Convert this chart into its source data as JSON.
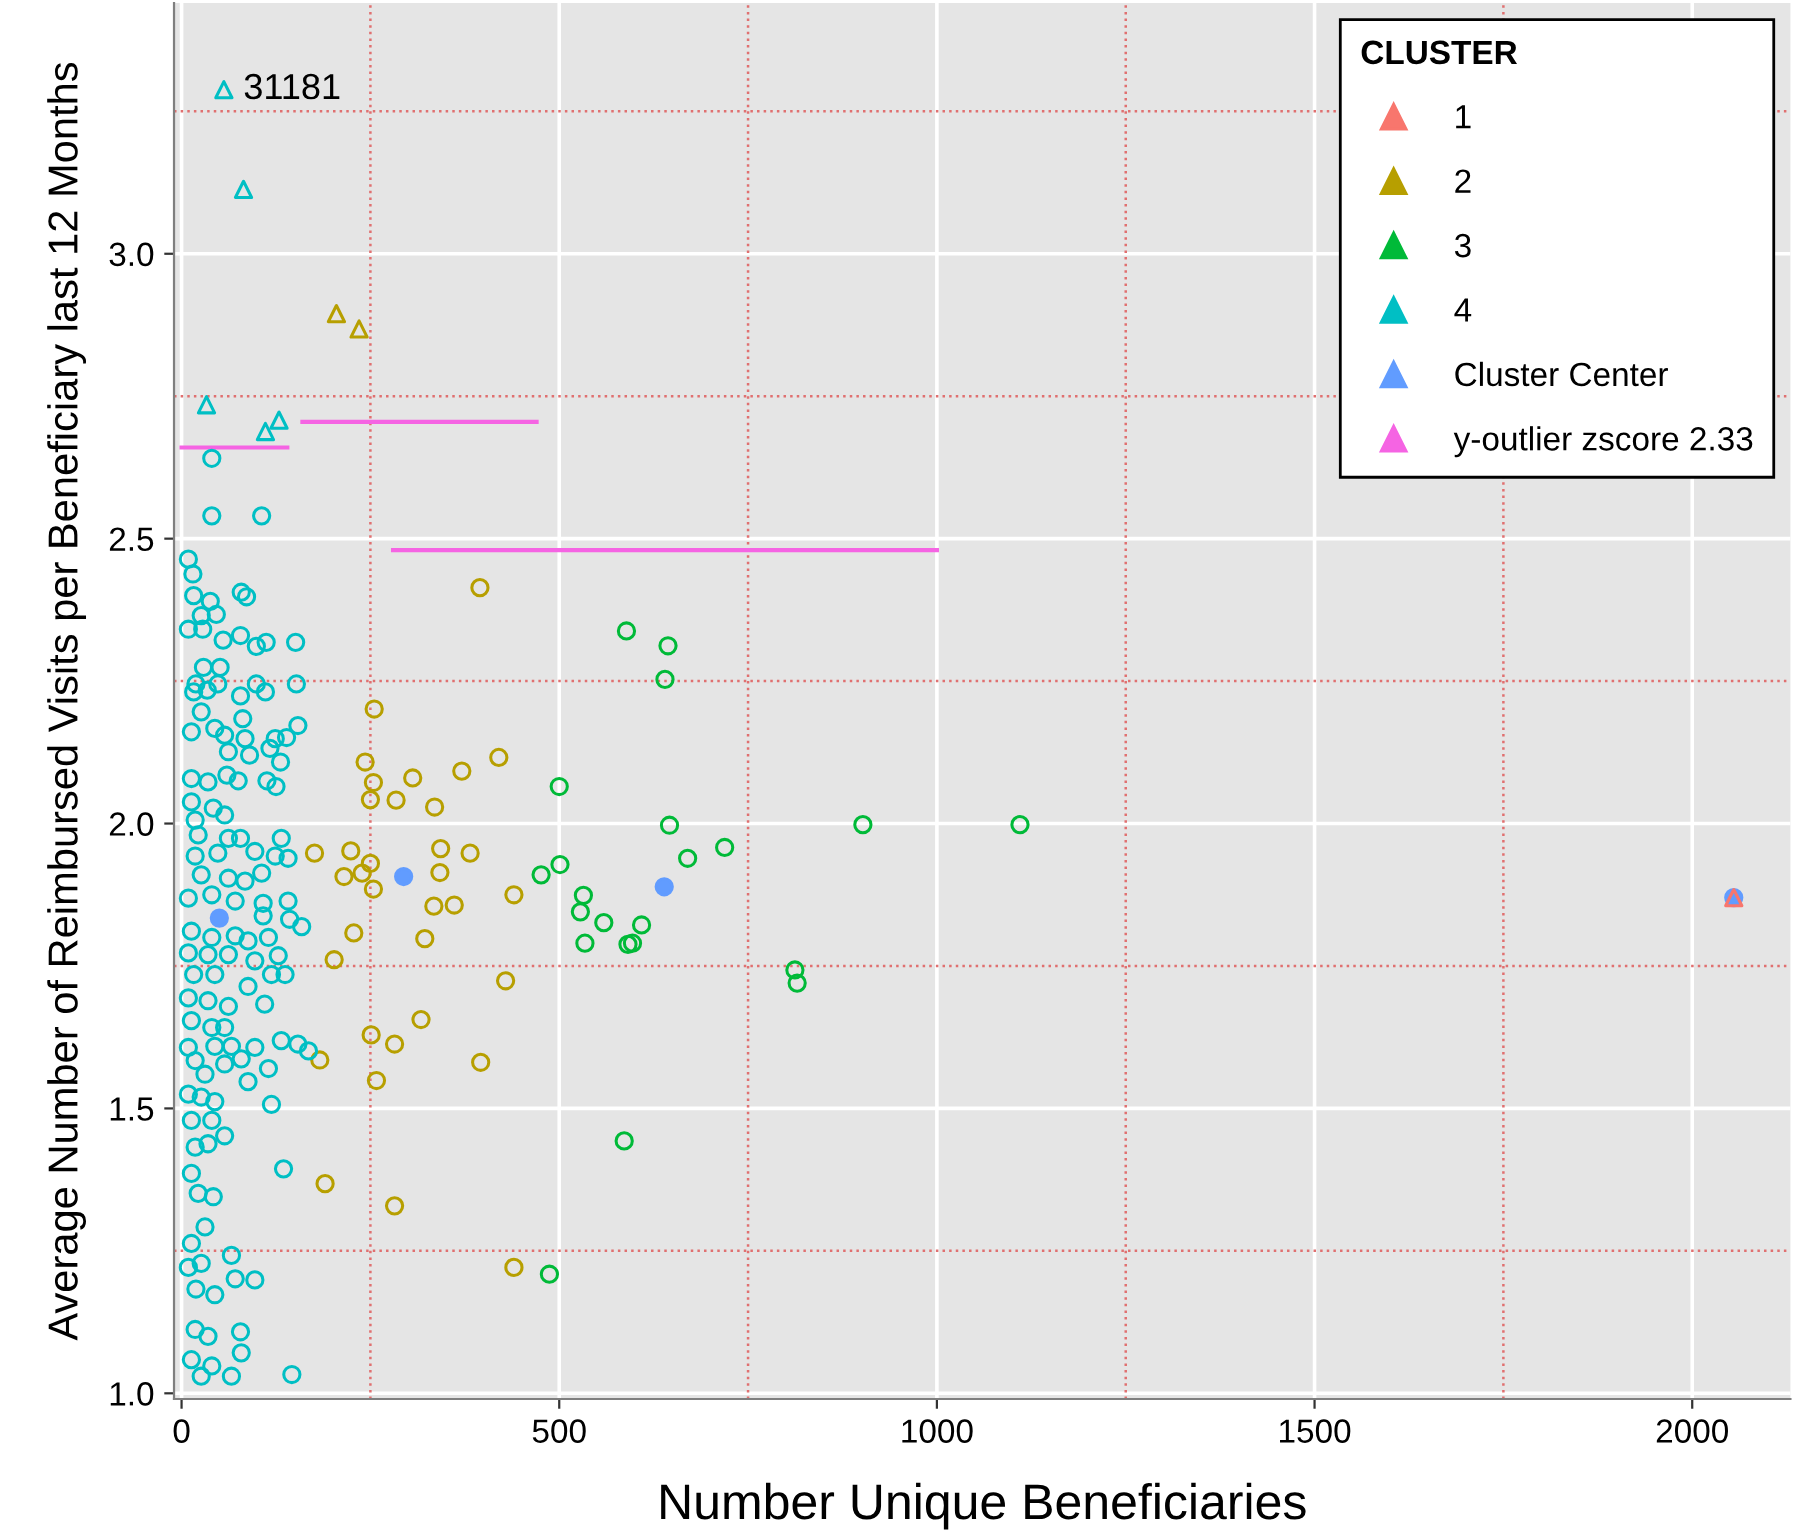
{
  "chart_data": {
    "type": "scatter",
    "xlabel": "Number Unique Beneficiaries",
    "ylabel": "Average Number of Reimbursed Visits per Beneficiary last 12 Months",
    "legend_title": "CLUSTER",
    "legend": "top right",
    "grid": true,
    "xlim": [
      -10,
      2130
    ],
    "ylim": [
      0.99,
      3.44
    ],
    "xticks": [
      0,
      500,
      1000,
      1500,
      2000
    ],
    "yticks": [
      {
        "value": 1.0,
        "label": "1.0"
      },
      {
        "value": 1.5,
        "label": "1.5"
      },
      {
        "value": 2.0,
        "label": "2.0"
      },
      {
        "value": 2.5,
        "label": "2.5"
      },
      {
        "value": 3.0,
        "label": "3.0"
      }
    ],
    "ref_lines": [
      {
        "axis": "x",
        "value": 250,
        "color": "#e07070",
        "line_style": "dotted"
      },
      {
        "axis": "x",
        "value": 750,
        "color": "#e07070",
        "line_style": "dotted"
      },
      {
        "axis": "x",
        "value": 1250,
        "color": "#e07070",
        "line_style": "dotted"
      },
      {
        "axis": "x",
        "value": 1750,
        "color": "#e07070",
        "line_style": "dotted"
      },
      {
        "axis": "y",
        "value": 1.25,
        "color": "#e07070",
        "line_style": "dotted"
      },
      {
        "axis": "y",
        "value": 1.75,
        "color": "#e07070",
        "line_style": "dotted"
      },
      {
        "axis": "y",
        "value": 2.25,
        "color": "#e07070",
        "line_style": "dotted"
      },
      {
        "axis": "y",
        "value": 2.75,
        "color": "#e07070",
        "line_style": "dotted"
      },
      {
        "axis": "y",
        "value": 3.25,
        "color": "#e07070",
        "line_style": "dotted"
      }
    ],
    "annotations": [
      {
        "text": "31181",
        "x": 56,
        "y": 3.288
      }
    ],
    "series": [
      {
        "name": "1",
        "color": "#f8766d",
        "marker": "triangle",
        "x": [
          2055
        ],
        "values": [
          1.87
        ]
      },
      {
        "name": "2",
        "color": "#b79f00",
        "marker": "circle",
        "x": [
          395,
          255,
          243,
          420,
          371,
          306,
          254,
          250,
          284,
          335,
          224,
          343,
          382,
          250,
          239,
          215,
          342,
          254,
          440,
          334,
          361,
          228,
          322,
          429,
          317,
          251,
          282,
          396,
          258,
          282,
          440,
          176,
          202,
          183,
          190
        ],
        "values": [
          2.414,
          2.201,
          2.108,
          2.116,
          2.092,
          2.08,
          2.072,
          2.042,
          2.041,
          2.029,
          1.952,
          1.956,
          1.948,
          1.93,
          1.913,
          1.907,
          1.914,
          1.885,
          1.875,
          1.855,
          1.857,
          1.808,
          1.798,
          1.724,
          1.656,
          1.629,
          1.613,
          1.581,
          1.549,
          1.329,
          1.221,
          1.948,
          1.761,
          1.585,
          1.368
        ]
      },
      {
        "color": "#b79f00",
        "marker": "triangle",
        "x": [
          205,
          235
        ],
        "values": [
          2.895,
          2.868
        ]
      },
      {
        "name": "3",
        "color": "#00ba38",
        "marker": "circle",
        "x": [
          589,
          644,
          640,
          500,
          646,
          902,
          1110,
          719,
          670,
          501,
          476,
          532,
          528,
          559,
          609,
          534,
          591,
          597,
          812,
          815,
          586,
          487
        ],
        "values": [
          2.338,
          2.312,
          2.253,
          2.065,
          1.997,
          1.998,
          1.998,
          1.958,
          1.939,
          1.928,
          1.91,
          1.874,
          1.845,
          1.826,
          1.822,
          1.79,
          1.788,
          1.79,
          1.743,
          1.72,
          1.443,
          1.209
        ]
      },
      {
        "name": "4",
        "color": "#00bfc4",
        "marker": "circle",
        "x": [
          40,
          40,
          106,
          9,
          15,
          16,
          38,
          79,
          86,
          46,
          26,
          9,
          28,
          55,
          78,
          99,
          112,
          151,
          29,
          51,
          19,
          48,
          78,
          99,
          111,
          152,
          16,
          34,
          26,
          13,
          44,
          57,
          81,
          84,
          124,
          139,
          154,
          62,
          90,
          117,
          131,
          13,
          35,
          60,
          75,
          113,
          125,
          13,
          42,
          18,
          57,
          22,
          62,
          78,
          132,
          18,
          48,
          97,
          124,
          141,
          26,
          62,
          84,
          106,
          9,
          40,
          71,
          108,
          141,
          108,
          143,
          159,
          13,
          40,
          71,
          88,
          115,
          9,
          35,
          62,
          97,
          128,
          16,
          44,
          88,
          119,
          137,
          9,
          35,
          62,
          110,
          13,
          40,
          57,
          9,
          44,
          66,
          97,
          132,
          154,
          168,
          18,
          31,
          57,
          79,
          115,
          88,
          9,
          26,
          44,
          119,
          13,
          40,
          18,
          35,
          57,
          135,
          13,
          22,
          42,
          31,
          13,
          66,
          9,
          26,
          19,
          44,
          71,
          97,
          18,
          35,
          78,
          79,
          13,
          40,
          66,
          146,
          26
        ],
        "values": [
          2.641,
          2.54,
          2.54,
          2.464,
          2.438,
          2.4,
          2.39,
          2.406,
          2.398,
          2.367,
          2.365,
          2.341,
          2.341,
          2.322,
          2.33,
          2.311,
          2.318,
          2.318,
          2.274,
          2.274,
          2.245,
          2.245,
          2.224,
          2.245,
          2.231,
          2.245,
          2.231,
          2.234,
          2.196,
          2.161,
          2.167,
          2.155,
          2.184,
          2.149,
          2.149,
          2.151,
          2.172,
          2.126,
          2.12,
          2.132,
          2.108,
          2.079,
          2.073,
          2.085,
          2.075,
          2.075,
          2.065,
          2.038,
          2.027,
          2.006,
          2.015,
          1.98,
          1.974,
          1.974,
          1.974,
          1.943,
          1.948,
          1.951,
          1.943,
          1.939,
          1.91,
          1.904,
          1.899,
          1.913,
          1.869,
          1.875,
          1.864,
          1.86,
          1.864,
          1.838,
          1.832,
          1.819,
          1.811,
          1.8,
          1.803,
          1.794,
          1.8,
          1.773,
          1.77,
          1.77,
          1.759,
          1.768,
          1.735,
          1.735,
          1.714,
          1.735,
          1.735,
          1.694,
          1.689,
          1.679,
          1.683,
          1.654,
          1.642,
          1.642,
          1.607,
          1.609,
          1.609,
          1.607,
          1.619,
          1.613,
          1.601,
          1.584,
          1.56,
          1.578,
          1.587,
          1.57,
          1.547,
          1.525,
          1.52,
          1.512,
          1.507,
          1.479,
          1.479,
          1.432,
          1.438,
          1.452,
          1.394,
          1.386,
          1.351,
          1.345,
          1.292,
          1.263,
          1.242,
          1.221,
          1.228,
          1.183,
          1.173,
          1.201,
          1.199,
          1.112,
          1.1,
          1.108,
          1.071,
          1.059,
          1.048,
          1.03,
          1.033,
          1.03
        ]
      },
      {
        "color": "#00bfc4",
        "marker": "triangle",
        "x": [
          56,
          82,
          33,
          129,
          111
        ],
        "values": [
          3.288,
          3.113,
          2.735,
          2.708,
          2.688
        ]
      },
      {
        "name": "Cluster Center",
        "color": "#619cff",
        "type": "bubble",
        "marker": "circle",
        "x": [
          50,
          294,
          639,
          2055
        ],
        "values": [
          1.834,
          1.907,
          1.889,
          1.87
        ],
        "sizes": [
          1,
          1,
          1,
          1
        ]
      },
      {
        "name": "y-outlier zscore 2.33",
        "type": "line",
        "color": "#f564e3",
        "line_style": "solid",
        "x": [
          0,
          140,
          null,
          160,
          470,
          null,
          280,
          1000
        ],
        "values": [
          2.66,
          2.66,
          null,
          2.705,
          2.705,
          null,
          2.48,
          2.48
        ]
      }
    ]
  }
}
